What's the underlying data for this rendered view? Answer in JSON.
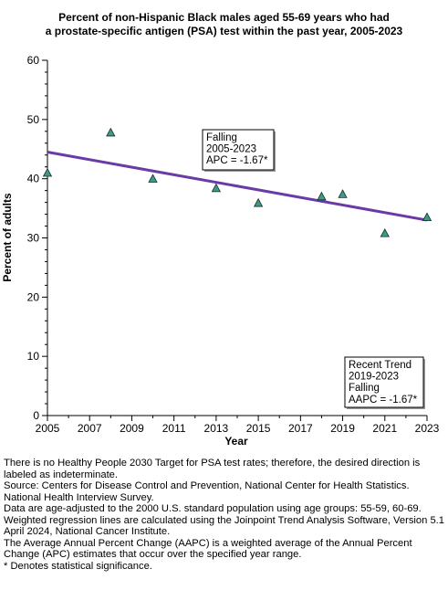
{
  "chart_data": {
    "type": "scatter",
    "title": [
      "Percent of non-Hispanic Black males aged 55-69 years who had",
      "a prostate-specific antigen (PSA) test within the past year, 2005-2023"
    ],
    "xlabel": "Year",
    "ylabel": "Percent of adults",
    "xlim": [
      2005,
      2023
    ],
    "ylim": [
      0,
      60
    ],
    "x_ticks": [
      "2005",
      "2007",
      "2009",
      "2011",
      "2013",
      "2015",
      "2017",
      "2019",
      "2021",
      "2023"
    ],
    "y_ticks": [
      "0",
      "10",
      "20",
      "30",
      "40",
      "50",
      "60"
    ],
    "grid": false,
    "points": [
      {
        "x": 2005,
        "y": 41.0
      },
      {
        "x": 2008,
        "y": 47.8
      },
      {
        "x": 2010,
        "y": 40.0
      },
      {
        "x": 2013,
        "y": 38.4
      },
      {
        "x": 2015,
        "y": 35.9
      },
      {
        "x": 2018,
        "y": 37.0
      },
      {
        "x": 2019,
        "y": 37.4
      },
      {
        "x": 2021,
        "y": 30.8
      },
      {
        "x": 2023,
        "y": 33.5
      }
    ],
    "trend_line": {
      "x": [
        2005,
        2023
      ],
      "y": [
        44.5,
        33.0
      ],
      "apc": -1.67
    },
    "annotations": [
      {
        "lines": [
          "Falling",
          "2005-2023",
          "APC = -1.67*"
        ],
        "placement": "upper-middle"
      },
      {
        "lines": [
          "Recent Trend",
          "2019-2023",
          "Falling",
          "AAPC = -1.67*"
        ],
        "placement": "bottom-right"
      }
    ],
    "colors": {
      "trend": "#6a3aa7",
      "marker": "#3a9b86",
      "marker_edge": "#1a2a2a"
    }
  },
  "notes": [
    "There is no Healthy People 2030 Target for PSA test rates; therefore, the desired direction is labeled as indeterminate.",
    "Source: Centers for Disease Control and Prevention, National Center for Health Statistics. National Health Interview Survey.",
    "Data are age-adjusted to the 2000 U.S. standard population using age groups: 55-59, 60-69.",
    "Weighted regression lines are calculated using the Joinpoint Trend Analysis Software, Version 5.1 April 2024, National Cancer Institute.",
    "The Average Annual Percent Change (AAPC) is a weighted average of the Annual Percent Change (APC) estimates that occur over the specified year range.",
    "* Denotes statistical significance."
  ]
}
